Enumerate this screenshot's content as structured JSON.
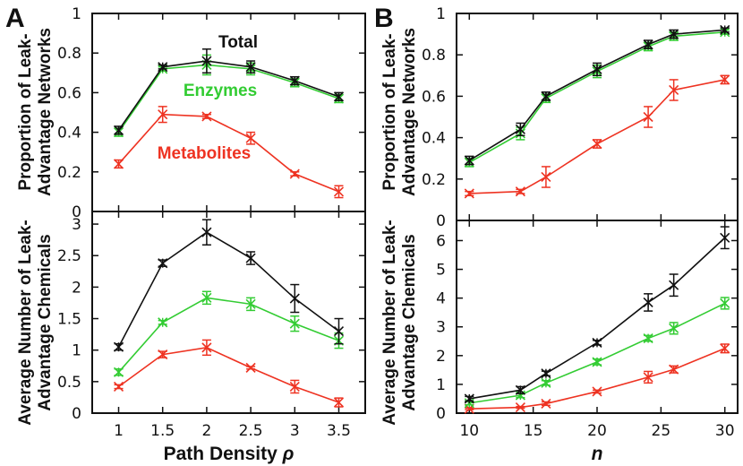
{
  "panels": {
    "a": "A",
    "b": "B"
  },
  "colors": {
    "total": "#111111",
    "enzymes": "#33cc33",
    "metabolites": "#ee3322"
  },
  "chart_data": [
    {
      "id": "A-top",
      "type": "line",
      "ylabel_lines": [
        "Proportion of Leak-",
        "Advantage Networks"
      ],
      "xlabel": "",
      "xlim": [
        0.7,
        3.8
      ],
      "ylim": [
        0,
        1
      ],
      "xticks": [],
      "xtick_labels": [],
      "yticks": [
        0,
        0.2,
        0.4,
        0.6,
        0.8,
        1
      ],
      "ytick_labels": [
        "0",
        "0.2",
        "0.4",
        "0.6",
        "0.8",
        "1"
      ],
      "x": [
        1,
        1.5,
        2,
        2.5,
        3,
        3.5
      ],
      "annotations": [
        {
          "key": "total",
          "text": "Total"
        },
        {
          "key": "enzymes",
          "text": "Enzymes"
        },
        {
          "key": "metabolites",
          "text": "Metabolites"
        }
      ],
      "series": [
        {
          "name": "Total",
          "key": "total",
          "values": [
            0.41,
            0.73,
            0.76,
            0.73,
            0.66,
            0.58
          ],
          "err": [
            0.02,
            0.01,
            0.06,
            0.03,
            0.02,
            0.02
          ]
        },
        {
          "name": "Enzymes",
          "key": "enzymes",
          "values": [
            0.4,
            0.72,
            0.74,
            0.72,
            0.65,
            0.57
          ],
          "err": [
            0.02,
            0.01,
            0.05,
            0.03,
            0.02,
            0.02
          ]
        },
        {
          "name": "Metabolites",
          "key": "metabolites",
          "values": [
            0.24,
            0.49,
            0.48,
            0.37,
            0.19,
            0.1
          ],
          "err": [
            0.02,
            0.04,
            0.01,
            0.03,
            0.01,
            0.03
          ]
        }
      ]
    },
    {
      "id": "A-bottom",
      "type": "line",
      "ylabel_lines": [
        "Average Number of Leak-",
        "Advantage Chemicals"
      ],
      "xlabel": "Path Density ρ",
      "xlim": [
        0.7,
        3.8
      ],
      "ylim": [
        0,
        3.2
      ],
      "xticks": [
        1,
        1.5,
        2,
        2.5,
        3,
        3.5
      ],
      "xtick_labels": [
        "1",
        "1.5",
        "2",
        "2.5",
        "3",
        "3.5"
      ],
      "yticks": [
        0,
        0.5,
        1,
        1.5,
        2,
        2.5,
        3
      ],
      "ytick_labels": [
        "0",
        "0.5",
        "1",
        "1.5",
        "2",
        "2.5",
        "3"
      ],
      "x": [
        1,
        1.5,
        2,
        2.5,
        3,
        3.5
      ],
      "series": [
        {
          "name": "Total",
          "key": "total",
          "values": [
            1.05,
            2.38,
            2.87,
            2.46,
            1.82,
            1.3
          ],
          "err": [
            0.05,
            0.05,
            0.2,
            0.1,
            0.22,
            0.2
          ]
        },
        {
          "name": "Enzymes",
          "key": "enzymes",
          "values": [
            0.65,
            1.44,
            1.83,
            1.73,
            1.42,
            1.15
          ],
          "err": [
            0.05,
            0.03,
            0.1,
            0.1,
            0.12,
            0.12
          ]
        },
        {
          "name": "Metabolites",
          "key": "metabolites",
          "values": [
            0.42,
            0.93,
            1.04,
            0.72,
            0.42,
            0.17
          ],
          "err": [
            0.03,
            0.05,
            0.12,
            0.02,
            0.1,
            0.07
          ]
        }
      ]
    },
    {
      "id": "B-top",
      "type": "line",
      "ylabel_lines": [
        "Proportion of Leak-",
        "Advantage Networks"
      ],
      "xlabel": "",
      "xlim": [
        9,
        31
      ],
      "ylim": [
        0,
        1
      ],
      "xticks": [],
      "xtick_labels": [],
      "yticks": [
        0,
        0.2,
        0.4,
        0.6,
        0.8,
        1
      ],
      "ytick_labels": [
        "0",
        "0.2",
        "0.4",
        "0.6",
        "0.8",
        "1"
      ],
      "x": [
        10,
        14,
        16,
        20,
        24,
        26,
        30
      ],
      "series": [
        {
          "name": "Total",
          "key": "total",
          "values": [
            0.29,
            0.44,
            0.6,
            0.73,
            0.85,
            0.9,
            0.92
          ],
          "err": [
            0.02,
            0.03,
            0.02,
            0.03,
            0.02,
            0.02,
            0.01
          ]
        },
        {
          "name": "Enzymes",
          "key": "enzymes",
          "values": [
            0.28,
            0.42,
            0.59,
            0.72,
            0.84,
            0.89,
            0.91
          ],
          "err": [
            0.02,
            0.03,
            0.02,
            0.03,
            0.02,
            0.02,
            0.01
          ]
        },
        {
          "name": "Metabolites",
          "key": "metabolites",
          "values": [
            0.13,
            0.14,
            0.21,
            0.37,
            0.5,
            0.63,
            0.68
          ],
          "err": [
            0.01,
            0.01,
            0.05,
            0.02,
            0.05,
            0.05,
            0.02
          ]
        }
      ]
    },
    {
      "id": "B-bottom",
      "type": "line",
      "ylabel_lines": [
        "Average Number of Leak-",
        "Advantage Chemicals"
      ],
      "xlabel": "n",
      "xlim": [
        9,
        31
      ],
      "ylim": [
        0,
        6.7
      ],
      "xticks": [
        10,
        15,
        20,
        25,
        30
      ],
      "xtick_labels": [
        "10",
        "15",
        "20",
        "25",
        "30"
      ],
      "yticks": [
        0,
        1,
        2,
        3,
        4,
        5,
        6
      ],
      "ytick_labels": [
        "0",
        "1",
        "2",
        "3",
        "4",
        "5",
        "6"
      ],
      "x": [
        10,
        14,
        16,
        20,
        24,
        26,
        30
      ],
      "series": [
        {
          "name": "Total",
          "key": "total",
          "values": [
            0.5,
            0.8,
            1.38,
            2.45,
            3.85,
            4.45,
            6.1
          ],
          "err": [
            0.08,
            0.12,
            0.08,
            0.08,
            0.3,
            0.38,
            0.38
          ]
        },
        {
          "name": "Enzymes",
          "key": "enzymes",
          "values": [
            0.35,
            0.62,
            1.05,
            1.78,
            2.6,
            2.95,
            3.82
          ],
          "err": [
            0.06,
            0.08,
            0.08,
            0.1,
            0.1,
            0.2,
            0.2
          ]
        },
        {
          "name": "Metabolites",
          "key": "metabolites",
          "values": [
            0.15,
            0.2,
            0.33,
            0.75,
            1.25,
            1.52,
            2.25
          ],
          "err": [
            0.03,
            0.03,
            0.06,
            0.05,
            0.2,
            0.12,
            0.15
          ]
        }
      ]
    }
  ]
}
